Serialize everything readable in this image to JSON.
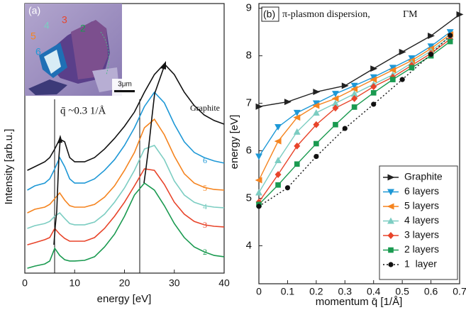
{
  "chart_data": [
    {
      "type": "line",
      "panel_label": "(a)",
      "xlabel": "energy [eV]",
      "ylabel": "Intensity [arb.u.]",
      "annotation": "q̄ ~0.3 1/Å",
      "inset_labels": [
        "3",
        "4",
        "2",
        "5",
        "6"
      ],
      "scale_bar": "3μm",
      "xlim": [
        0,
        40
      ],
      "xticks": [
        0,
        10,
        20,
        30,
        40
      ],
      "ylim": [
        0,
        10
      ],
      "x": [
        0.5,
        2,
        4,
        5,
        6,
        7,
        8,
        9,
        10,
        12,
        14,
        16,
        18,
        20,
        22,
        24,
        26,
        28,
        30,
        32,
        34,
        36,
        38,
        40
      ],
      "series": [
        {
          "name": "Graphite",
          "color": "#111111",
          "values": [
            4.83,
            5.0,
            5.23,
            5.43,
            5.83,
            6.3,
            6.17,
            5.43,
            5.23,
            5.23,
            5.43,
            5.83,
            6.33,
            6.9,
            7.57,
            8.5,
            9.33,
            9.83,
            9.33,
            8.5,
            7.87,
            7.43,
            7.17,
            7.0
          ]
        },
        {
          "name": "6",
          "color": "#1e98d6",
          "values": [
            3.9,
            4.1,
            4.23,
            4.43,
            4.9,
            5.43,
            5.0,
            4.43,
            4.23,
            4.23,
            4.43,
            4.83,
            5.33,
            6.0,
            6.83,
            7.83,
            8.5,
            8.0,
            7.0,
            6.17,
            5.67,
            5.43,
            5.27,
            5.17
          ]
        },
        {
          "name": "5",
          "color": "#f5841f",
          "values": [
            2.83,
            3.0,
            3.1,
            3.23,
            3.5,
            3.77,
            3.43,
            3.17,
            3.1,
            3.1,
            3.23,
            3.57,
            4.1,
            4.83,
            5.67,
            6.83,
            7.23,
            6.5,
            5.5,
            4.67,
            4.23,
            4.03,
            3.93,
            3.9
          ]
        },
        {
          "name": "4",
          "color": "#7ccdc2",
          "values": [
            2.1,
            2.23,
            2.33,
            2.43,
            2.67,
            2.83,
            2.57,
            2.33,
            2.27,
            2.27,
            2.4,
            2.77,
            3.33,
            4.0,
            4.83,
            5.83,
            6.0,
            5.33,
            4.33,
            3.67,
            3.33,
            3.17,
            3.1,
            3.07
          ]
        },
        {
          "name": "3",
          "color": "#e8442a",
          "values": [
            1.33,
            1.43,
            1.57,
            1.67,
            2.1,
            1.83,
            1.63,
            1.5,
            1.5,
            1.5,
            1.67,
            2.1,
            2.67,
            3.33,
            4.1,
            4.9,
            4.83,
            4.17,
            3.33,
            2.77,
            2.43,
            2.27,
            2.2,
            2.17
          ]
        },
        {
          "name": "2",
          "color": "#1a9a50",
          "values": [
            0.23,
            0.33,
            0.43,
            0.57,
            1.17,
            0.83,
            0.63,
            0.57,
            0.57,
            0.6,
            0.77,
            1.23,
            1.83,
            2.67,
            3.67,
            4.23,
            3.9,
            3.17,
            2.33,
            1.67,
            1.23,
            1.0,
            0.83,
            0.77
          ]
        }
      ]
    },
    {
      "type": "scatter-line",
      "panel_label": "(b)",
      "title": "π-plasmon dispersion,",
      "subtitle": "ΓM",
      "xlabel": "momentum q̄ [1/Å]",
      "ylabel": "energy [eV]",
      "legend": "lower right",
      "xlim": [
        0,
        0.7
      ],
      "xticks": [
        0,
        0.1,
        0.2,
        0.3,
        0.4,
        0.5,
        0.6,
        0.7
      ],
      "ylim": [
        3.2,
        9.1
      ],
      "yticks": [
        4,
        5,
        6,
        7,
        8,
        9
      ],
      "series": [
        {
          "name": "Graphite",
          "color": "#222222",
          "marker": "triangle-right",
          "dash": "solid",
          "x": [
            0,
            0.1,
            0.2,
            0.3,
            0.4,
            0.5,
            0.6,
            0.7
          ],
          "values": [
            6.93,
            7.03,
            7.24,
            7.37,
            7.73,
            8.08,
            8.42,
            8.87
          ]
        },
        {
          "name": "6 layers",
          "color": "#1e98d6",
          "marker": "triangle-down",
          "dash": "solid",
          "x": [
            0,
            0.067,
            0.133,
            0.2,
            0.267,
            0.333,
            0.4,
            0.467,
            0.533,
            0.6,
            0.667
          ],
          "values": [
            5.88,
            6.5,
            6.8,
            7.0,
            7.2,
            7.37,
            7.55,
            7.75,
            7.95,
            8.2,
            8.5
          ]
        },
        {
          "name": "5 layers",
          "color": "#f5841f",
          "marker": "triangle-left",
          "dash": "solid",
          "x": [
            0,
            0.067,
            0.133,
            0.2,
            0.267,
            0.333,
            0.4,
            0.467,
            0.533,
            0.6,
            0.667
          ],
          "values": [
            5.38,
            6.2,
            6.7,
            6.95,
            7.1,
            7.3,
            7.5,
            7.7,
            7.9,
            8.15,
            8.45
          ]
        },
        {
          "name": "4 layers",
          "color": "#7ccdc2",
          "marker": "triangle-up",
          "dash": "solid",
          "x": [
            0,
            0.067,
            0.133,
            0.2,
            0.267,
            0.333,
            0.4,
            0.467,
            0.533,
            0.6,
            0.667
          ],
          "values": [
            5.12,
            5.8,
            6.4,
            6.8,
            7.0,
            7.2,
            7.4,
            7.6,
            7.85,
            8.1,
            8.4
          ]
        },
        {
          "name": "3 layers",
          "color": "#e8442a",
          "marker": "diamond",
          "dash": "solid",
          "x": [
            0,
            0.067,
            0.133,
            0.2,
            0.267,
            0.333,
            0.4,
            0.467,
            0.533,
            0.6,
            0.667
          ],
          "values": [
            4.92,
            5.5,
            6.1,
            6.55,
            6.9,
            7.1,
            7.35,
            7.55,
            7.8,
            8.05,
            8.35
          ]
        },
        {
          "name": "2 layers",
          "color": "#1a9a50",
          "marker": "square",
          "dash": "solid",
          "x": [
            0,
            0.067,
            0.133,
            0.2,
            0.267,
            0.333,
            0.4,
            0.467,
            0.533,
            0.6,
            0.667
          ],
          "values": [
            4.87,
            5.28,
            5.72,
            6.15,
            6.55,
            6.92,
            7.22,
            7.5,
            7.75,
            8.0,
            8.3
          ]
        },
        {
          "name": "1  layer",
          "color": "#111111",
          "marker": "circle",
          "dash": "dotted",
          "x": [
            0,
            0.1,
            0.2,
            0.3,
            0.4,
            0.5,
            0.6,
            0.667
          ],
          "values": [
            4.83,
            5.22,
            5.88,
            6.47,
            6.98,
            7.5,
            8.03,
            8.43
          ]
        }
      ]
    }
  ]
}
